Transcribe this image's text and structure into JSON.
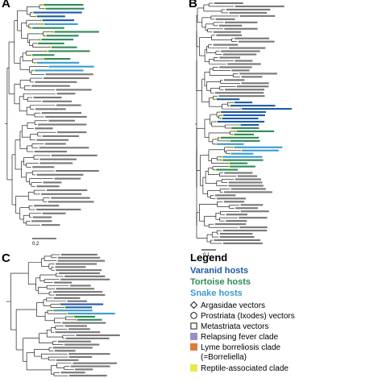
{
  "panels": [
    "A",
    "B",
    "C"
  ],
  "scale_labels": {
    "a": "0.2",
    "b": "0.1"
  },
  "colors": {
    "varanid": "#1e5aa8",
    "tortoise": "#2e8b57",
    "snake": "#3a9bd0",
    "relapsing_fever": "#9b8ec4",
    "lyme": "#e07a3a",
    "reptile": "#e8e84a",
    "branch": "#000000"
  },
  "legend": {
    "title": "Legend",
    "varanid": "Varanid hosts",
    "tortoise": "Tortoise hosts",
    "snake": "Snake hosts",
    "argasidae": "Argasidae vectors",
    "prostriata": "Prostriata (Ixodes) vectors",
    "metastriata": "Metastriata vectors",
    "relapsing": "Relapsing fever clade",
    "lyme": "Lyme borreliosis clade",
    "lyme_sub": "(=Borreliella)",
    "reptile": "Reptile-associated clade"
  }
}
